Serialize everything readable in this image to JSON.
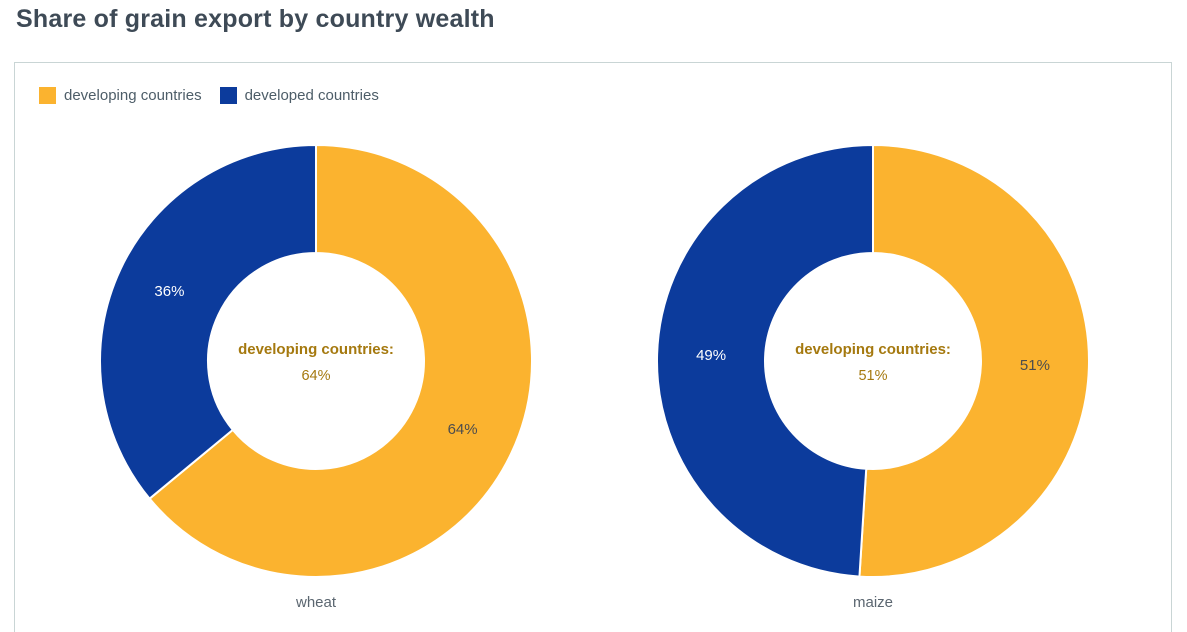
{
  "page": {
    "title": "Share of grain export by country wealth"
  },
  "legend": {
    "items": [
      {
        "label": "developing countries",
        "color": "#fbb32f"
      },
      {
        "label": "developed countries",
        "color": "#0c3b9c"
      }
    ]
  },
  "chart_data": {
    "type": "pie",
    "variant": "donut",
    "title": "Share of grain export by country wealth",
    "legend_position": "top-left",
    "direction": "clockwise",
    "start_angle_deg": 0,
    "inner_radius_ratio": 0.5,
    "colors": {
      "developing countries": "#fbb32f",
      "developed countries": "#0c3b9c"
    },
    "slice_label_colors": {
      "developing countries": "#4d4d4d",
      "developed countries": "#ffffff"
    },
    "center_text_color": "#a5790f",
    "series": [
      {
        "category": "wheat",
        "center_title": "developing countries:",
        "center_value": "64%",
        "slices": [
          {
            "name": "developing countries",
            "value": 64,
            "label": "64%"
          },
          {
            "name": "developed countries",
            "value": 36,
            "label": "36%"
          }
        ]
      },
      {
        "category": "maize",
        "center_title": "developing countries:",
        "center_value": "51%",
        "slices": [
          {
            "name": "developing countries",
            "value": 51,
            "label": "51%"
          },
          {
            "name": "developed countries",
            "value": 49,
            "label": "49%"
          }
        ]
      }
    ]
  }
}
